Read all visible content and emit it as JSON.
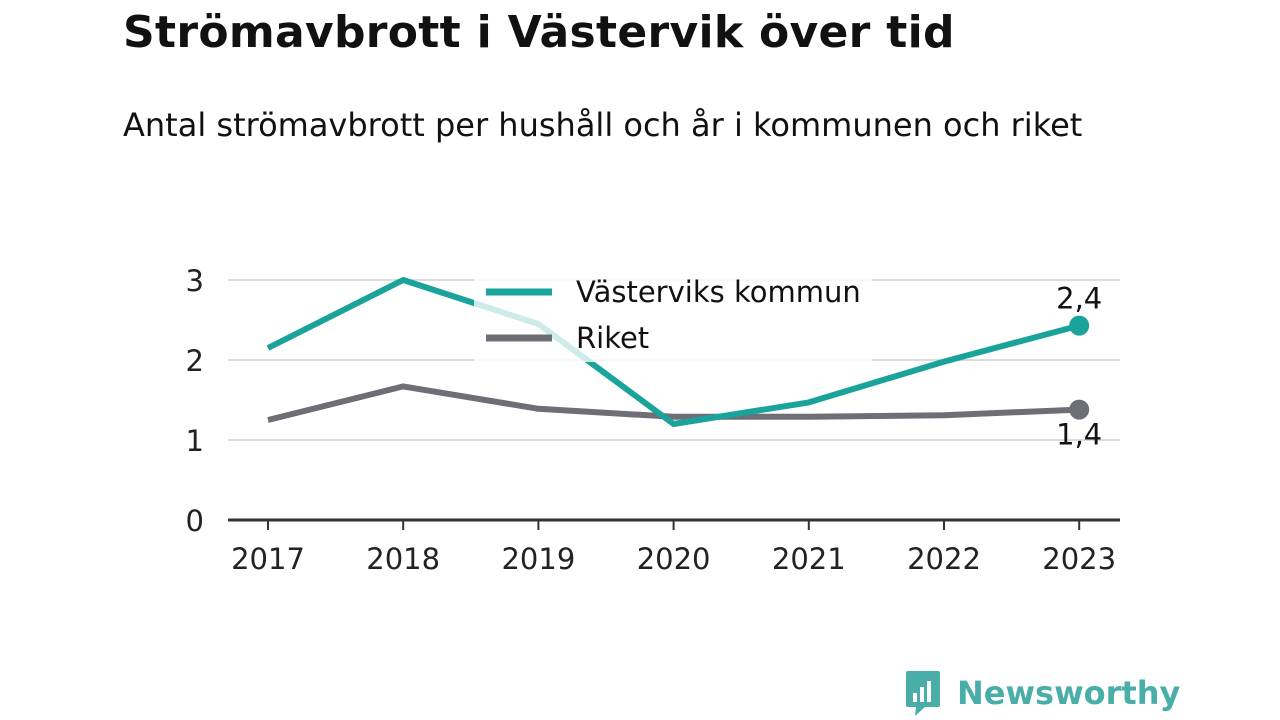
{
  "header": {
    "title": "Strömavbrott i Västervik över tid",
    "subtitle": "Antal strömavbrott per hushåll och år i kommunen och riket"
  },
  "brand": {
    "name": "Newsworthy",
    "logo_icon": "bar-chart-speech-bubble-icon",
    "color": "#4aaea8"
  },
  "chart_data": {
    "type": "line",
    "title": "Strömavbrott i Västervik över tid",
    "subtitle": "Antal strömavbrott per hushåll och år i kommunen och riket",
    "xlabel": "",
    "ylabel": "",
    "categories": [
      "2017",
      "2018",
      "2019",
      "2020",
      "2021",
      "2022",
      "2023"
    ],
    "ylim": [
      0,
      3
    ],
    "yticks": [
      0,
      1,
      2,
      3
    ],
    "ytick_labels": [
      "0",
      "1",
      "2",
      "3"
    ],
    "grid": true,
    "legend_position": "top-center",
    "series": [
      {
        "name": "Västerviks kommun",
        "color": "#1aa39a",
        "values": [
          2.15,
          3.0,
          2.45,
          1.2,
          1.47,
          1.98,
          2.43
        ],
        "end_label": "2,4"
      },
      {
        "name": "Riket",
        "color": "#6e6e76",
        "values": [
          1.25,
          1.67,
          1.39,
          1.29,
          1.29,
          1.31,
          1.38
        ],
        "end_label": "1,4"
      }
    ]
  }
}
